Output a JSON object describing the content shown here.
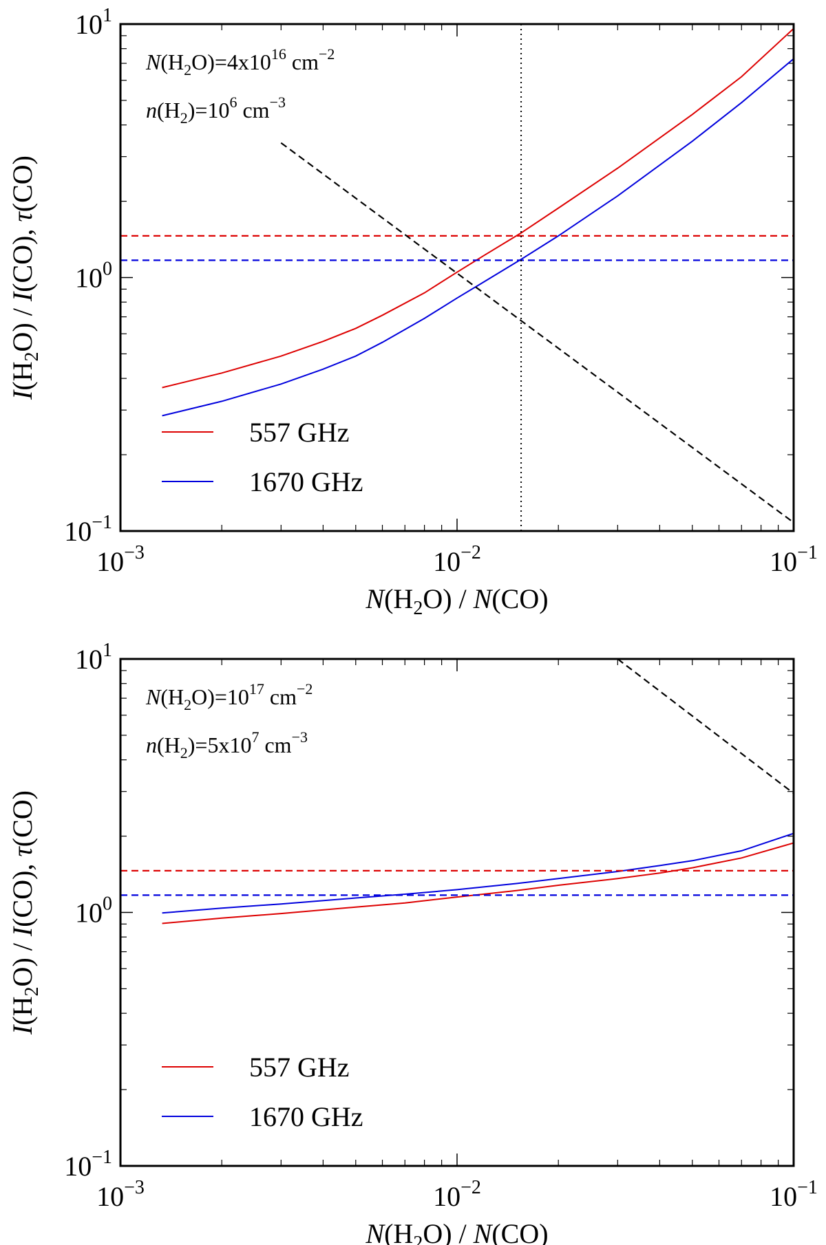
{
  "chart_data": [
    {
      "type": "line",
      "xscale": "log",
      "yscale": "log",
      "xlim": [
        0.001,
        0.1
      ],
      "ylim": [
        0.1,
        10
      ],
      "xlabel": {
        "italic": "N",
        "pre": "(H",
        "sub": "2",
        "post": "O) / ",
        "italic2": "N",
        "post2": "(CO)"
      },
      "ylabel": {
        "italic": "I",
        "pre": "(H",
        "sub": "2",
        "post": "O) / ",
        "italic2": "I",
        "post2": "(CO), ",
        "tau": "τ",
        "post3": "(CO)"
      },
      "xticks": [
        {
          "value": 0.001,
          "base": "10",
          "exp": "−3"
        },
        {
          "value": 0.01,
          "base": "10",
          "exp": "−2"
        },
        {
          "value": 0.1,
          "base": "10",
          "exp": "−1"
        }
      ],
      "yticks": [
        {
          "value": 0.1,
          "base": "10",
          "exp": "−1"
        },
        {
          "value": 1,
          "base": "10",
          "exp": "0"
        },
        {
          "value": 10,
          "base": "10",
          "exp": "1"
        }
      ],
      "annotations": [
        {
          "italic": "N",
          "pre": "(H",
          "sub": "2",
          "mid": "O)=4x10",
          "sup": "16",
          "post": " cm",
          "sup2": "−2"
        },
        {
          "italic": "n",
          "pre": "(H",
          "sub": "2",
          "mid": ")=10",
          "sup": "6",
          "post": " cm",
          "sup2": "−3"
        }
      ],
      "series": [
        {
          "name": "557 GHz",
          "color": "#dd0000",
          "style": "solid",
          "x": [
            0.00133,
            0.002,
            0.003,
            0.004,
            0.005,
            0.006,
            0.008,
            0.01,
            0.012,
            0.0155,
            0.02,
            0.03,
            0.05,
            0.07,
            0.1
          ],
          "y": [
            0.368,
            0.42,
            0.49,
            0.56,
            0.63,
            0.71,
            0.87,
            1.05,
            1.22,
            1.5,
            1.88,
            2.7,
            4.4,
            6.2,
            9.6
          ]
        },
        {
          "name": "1670 GHz",
          "color": "#0000dd",
          "style": "solid",
          "x": [
            0.00133,
            0.002,
            0.003,
            0.004,
            0.005,
            0.006,
            0.008,
            0.01,
            0.012,
            0.0155,
            0.02,
            0.03,
            0.05,
            0.07,
            0.1
          ],
          "y": [
            0.285,
            0.325,
            0.38,
            0.435,
            0.49,
            0.555,
            0.69,
            0.83,
            0.96,
            1.18,
            1.46,
            2.1,
            3.45,
            4.9,
            7.3
          ]
        },
        {
          "name": "557 GHz reference",
          "color": "#dd0000",
          "style": "dashed",
          "x": [
            0.001,
            0.1
          ],
          "y": [
            1.46,
            1.46
          ]
        },
        {
          "name": "1670 GHz reference",
          "color": "#0000dd",
          "style": "dashed",
          "x": [
            0.001,
            0.1
          ],
          "y": [
            1.17,
            1.17
          ]
        },
        {
          "name": "τ(CO)",
          "color": "#000000",
          "style": "dashed",
          "x": [
            0.003,
            0.1
          ],
          "y": [
            3.4,
            0.108
          ]
        }
      ],
      "vline": {
        "x": 0.0155,
        "color": "#000000",
        "style": "dotted"
      },
      "legend": {
        "placement": "lower-left",
        "entries": [
          "557 GHz",
          "1670 GHz"
        ]
      }
    },
    {
      "type": "line",
      "xscale": "log",
      "yscale": "log",
      "xlim": [
        0.001,
        0.1
      ],
      "ylim": [
        0.1,
        10
      ],
      "xlabel": {
        "italic": "N",
        "pre": "(H",
        "sub": "2",
        "post": "O) / ",
        "italic2": "N",
        "post2": "(CO)"
      },
      "ylabel": {
        "italic": "I",
        "pre": "(H",
        "sub": "2",
        "post": "O) / ",
        "italic2": "I",
        "post2": "(CO), ",
        "tau": "τ",
        "post3": "(CO)"
      },
      "xticks": [
        {
          "value": 0.001,
          "base": "10",
          "exp": "−3"
        },
        {
          "value": 0.01,
          "base": "10",
          "exp": "−2"
        },
        {
          "value": 0.1,
          "base": "10",
          "exp": "−1"
        }
      ],
      "yticks": [
        {
          "value": 0.1,
          "base": "10",
          "exp": "−1"
        },
        {
          "value": 1,
          "base": "10",
          "exp": "0"
        },
        {
          "value": 10,
          "base": "10",
          "exp": "1"
        }
      ],
      "annotations": [
        {
          "italic": "N",
          "pre": "(H",
          "sub": "2",
          "mid": "O)=10",
          "sup": "17",
          "post": " cm",
          "sup2": "−2"
        },
        {
          "italic": "n",
          "pre": "(H",
          "sub": "2",
          "mid": ")=5x10",
          "sup": "7",
          "post": " cm",
          "sup2": "−3"
        }
      ],
      "series": [
        {
          "name": "557 GHz",
          "color": "#dd0000",
          "style": "solid",
          "x": [
            0.00133,
            0.002,
            0.003,
            0.005,
            0.007,
            0.01,
            0.015,
            0.02,
            0.03,
            0.04,
            0.05,
            0.07,
            0.1
          ],
          "y": [
            0.905,
            0.95,
            0.99,
            1.05,
            1.09,
            1.15,
            1.22,
            1.28,
            1.36,
            1.43,
            1.5,
            1.64,
            1.88
          ]
        },
        {
          "name": "1670 GHz",
          "color": "#0000dd",
          "style": "solid",
          "x": [
            0.00133,
            0.002,
            0.003,
            0.005,
            0.007,
            0.01,
            0.015,
            0.02,
            0.03,
            0.04,
            0.05,
            0.07,
            0.1
          ],
          "y": [
            0.995,
            1.04,
            1.08,
            1.14,
            1.18,
            1.23,
            1.3,
            1.36,
            1.45,
            1.53,
            1.6,
            1.75,
            2.05
          ]
        },
        {
          "name": "557 GHz reference",
          "color": "#dd0000",
          "style": "dashed",
          "x": [
            0.001,
            0.1
          ],
          "y": [
            1.46,
            1.46
          ]
        },
        {
          "name": "1670 GHz reference",
          "color": "#0000dd",
          "style": "dashed",
          "x": [
            0.001,
            0.1
          ],
          "y": [
            1.17,
            1.17
          ]
        },
        {
          "name": "τ(CO)",
          "color": "#000000",
          "style": "dashed",
          "x": [
            0.03,
            0.1
          ],
          "y": [
            10,
            2.95
          ]
        }
      ],
      "legend": {
        "placement": "lower-left",
        "entries": [
          "557 GHz",
          "1670 GHz"
        ]
      }
    }
  ]
}
